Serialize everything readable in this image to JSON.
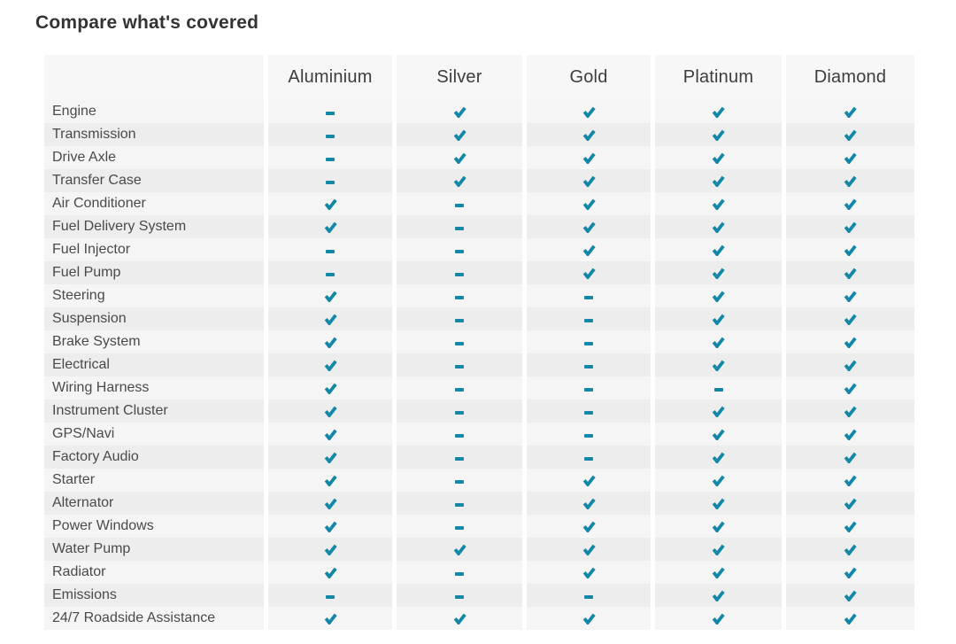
{
  "title": "Compare what's covered",
  "colors": {
    "accent_teal": "#1287a8",
    "header_bg": "#f7f7f7",
    "row_odd_bg": "#f5f5f5",
    "row_even_bg": "#ededed",
    "title_color": "#333333",
    "label_color": "#4a4a4a",
    "header_text_color": "#3d3d3d"
  },
  "icons": {
    "check": "check-icon",
    "dash": "dash-icon"
  },
  "table": {
    "columns": [
      "Aluminium",
      "Silver",
      "Gold",
      "Platinum",
      "Diamond"
    ],
    "rows": [
      {
        "label": "Engine",
        "values": [
          "dash",
          "check",
          "check",
          "check",
          "check"
        ]
      },
      {
        "label": "Transmission",
        "values": [
          "dash",
          "check",
          "check",
          "check",
          "check"
        ]
      },
      {
        "label": "Drive Axle",
        "values": [
          "dash",
          "check",
          "check",
          "check",
          "check"
        ]
      },
      {
        "label": "Transfer Case",
        "values": [
          "dash",
          "check",
          "check",
          "check",
          "check"
        ]
      },
      {
        "label": "Air Conditioner",
        "values": [
          "check",
          "dash",
          "check",
          "check",
          "check"
        ]
      },
      {
        "label": "Fuel Delivery System",
        "values": [
          "check",
          "dash",
          "check",
          "check",
          "check"
        ]
      },
      {
        "label": "Fuel Injector",
        "values": [
          "dash",
          "dash",
          "check",
          "check",
          "check"
        ]
      },
      {
        "label": "Fuel Pump",
        "values": [
          "dash",
          "dash",
          "check",
          "check",
          "check"
        ]
      },
      {
        "label": "Steering",
        "values": [
          "check",
          "dash",
          "dash",
          "check",
          "check"
        ]
      },
      {
        "label": "Suspension",
        "values": [
          "check",
          "dash",
          "dash",
          "check",
          "check"
        ]
      },
      {
        "label": "Brake System",
        "values": [
          "check",
          "dash",
          "dash",
          "check",
          "check"
        ]
      },
      {
        "label": "Electrical",
        "values": [
          "check",
          "dash",
          "dash",
          "check",
          "check"
        ]
      },
      {
        "label": "Wiring Harness",
        "values": [
          "check",
          "dash",
          "dash",
          "dash",
          "check"
        ]
      },
      {
        "label": "Instrument Cluster",
        "values": [
          "check",
          "dash",
          "dash",
          "check",
          "check"
        ]
      },
      {
        "label": "GPS/Navi",
        "values": [
          "check",
          "dash",
          "dash",
          "check",
          "check"
        ]
      },
      {
        "label": "Factory Audio",
        "values": [
          "check",
          "dash",
          "dash",
          "check",
          "check"
        ]
      },
      {
        "label": "Starter",
        "values": [
          "check",
          "dash",
          "check",
          "check",
          "check"
        ]
      },
      {
        "label": "Alternator",
        "values": [
          "check",
          "dash",
          "check",
          "check",
          "check"
        ]
      },
      {
        "label": "Power Windows",
        "values": [
          "check",
          "dash",
          "check",
          "check",
          "check"
        ]
      },
      {
        "label": "Water Pump",
        "values": [
          "check",
          "check",
          "check",
          "check",
          "check"
        ]
      },
      {
        "label": "Radiator",
        "values": [
          "check",
          "dash",
          "check",
          "check",
          "check"
        ]
      },
      {
        "label": "Emissions",
        "values": [
          "dash",
          "dash",
          "dash",
          "check",
          "check"
        ]
      },
      {
        "label": "24/7 Roadside Assistance",
        "values": [
          "check",
          "check",
          "check",
          "check",
          "check"
        ]
      }
    ]
  }
}
